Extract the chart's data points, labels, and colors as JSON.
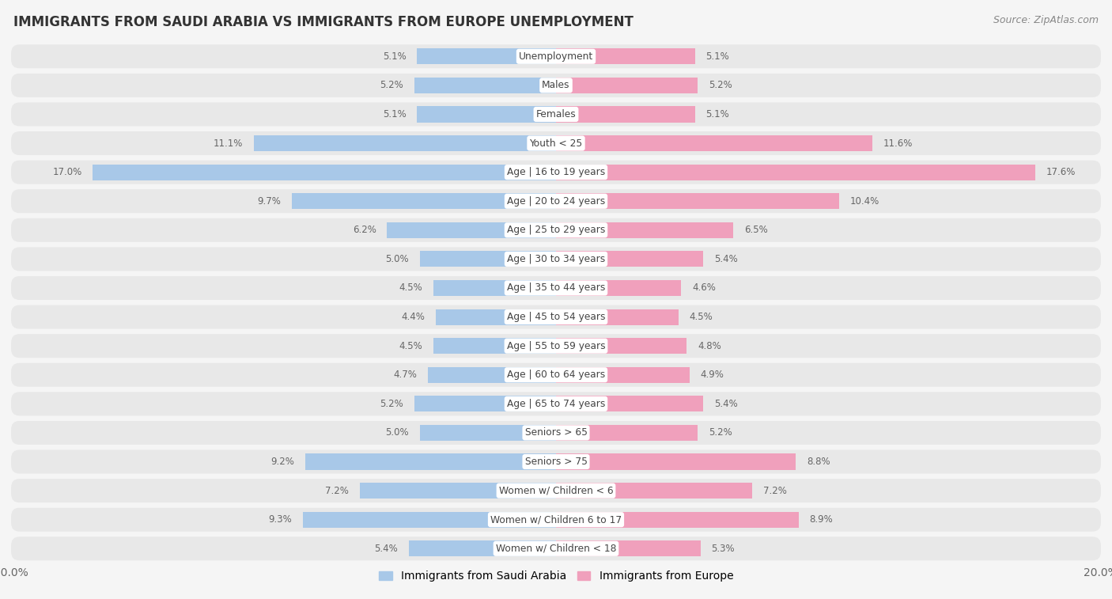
{
  "title": "IMMIGRANTS FROM SAUDI ARABIA VS IMMIGRANTS FROM EUROPE UNEMPLOYMENT",
  "source": "Source: ZipAtlas.com",
  "categories": [
    "Unemployment",
    "Males",
    "Females",
    "Youth < 25",
    "Age | 16 to 19 years",
    "Age | 20 to 24 years",
    "Age | 25 to 29 years",
    "Age | 30 to 34 years",
    "Age | 35 to 44 years",
    "Age | 45 to 54 years",
    "Age | 55 to 59 years",
    "Age | 60 to 64 years",
    "Age | 65 to 74 years",
    "Seniors > 65",
    "Seniors > 75",
    "Women w/ Children < 6",
    "Women w/ Children 6 to 17",
    "Women w/ Children < 18"
  ],
  "saudi_arabia": [
    5.1,
    5.2,
    5.1,
    11.1,
    17.0,
    9.7,
    6.2,
    5.0,
    4.5,
    4.4,
    4.5,
    4.7,
    5.2,
    5.0,
    9.2,
    7.2,
    9.3,
    5.4
  ],
  "europe": [
    5.1,
    5.2,
    5.1,
    11.6,
    17.6,
    10.4,
    6.5,
    5.4,
    4.6,
    4.5,
    4.8,
    4.9,
    5.4,
    5.2,
    8.8,
    7.2,
    8.9,
    5.3
  ],
  "saudi_color": "#a8c8e8",
  "europe_color": "#f0a0bc",
  "max_value": 20.0,
  "row_bg_color": "#e8e8e8",
  "outer_bg_color": "#f5f5f5",
  "legend_saudi": "Immigrants from Saudi Arabia",
  "legend_europe": "Immigrants from Europe",
  "value_color": "#666666",
  "label_color": "#444444",
  "title_color": "#333333",
  "source_color": "#888888"
}
